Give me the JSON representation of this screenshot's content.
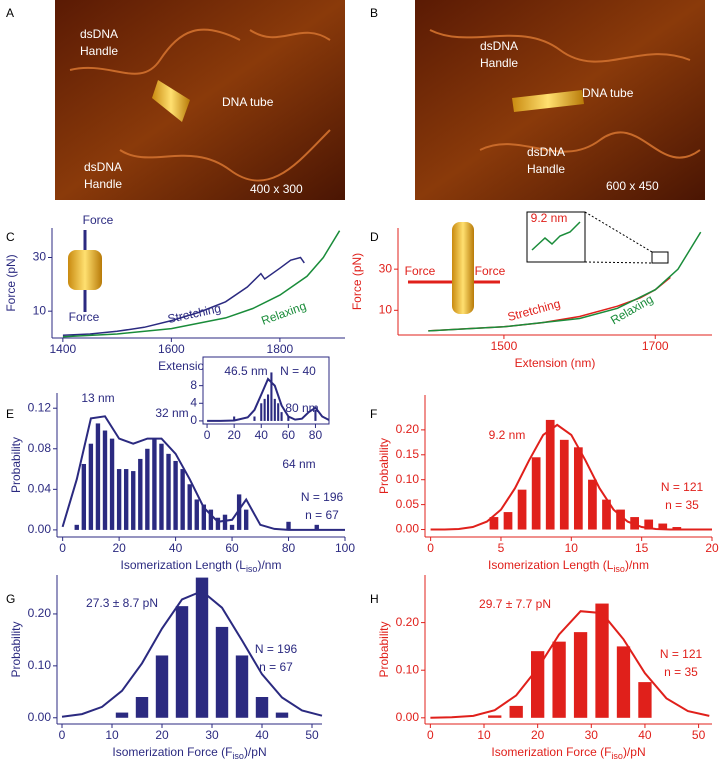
{
  "images": [
    {
      "panel": "A",
      "labels": [
        [
          "dsDNA",
          "Handle"
        ],
        [
          "DNA tube"
        ],
        [
          "dsDNA",
          "Handle"
        ],
        [
          "400  x 300"
        ]
      ]
    },
    {
      "panel": "B",
      "labels": [
        [
          "dsDNA",
          "Handle"
        ],
        [
          "DNA tube"
        ],
        [
          "dsDNA",
          "Handle"
        ],
        [
          "600  x 450"
        ]
      ]
    }
  ],
  "chart_data": [
    {
      "type": "line",
      "panel": "C",
      "color": "#2b2a80",
      "x_label": [
        "Extension (nm)"
      ],
      "y_label": "Force (pN)",
      "xlim": [
        1380,
        1920
      ],
      "xticks": [
        1400,
        1600,
        1800
      ],
      "ylim": [
        0,
        41
      ],
      "yticks": [
        10,
        30
      ],
      "annotations": [
        "Force",
        "Force"
      ],
      "series": [
        {
          "name": "Stretching",
          "color": "#2b2a80",
          "x": [
            1400,
            1450,
            1500,
            1550,
            1600,
            1650,
            1700,
            1740,
            1765,
            1772,
            1800,
            1820,
            1838,
            1845
          ],
          "values": [
            1,
            1.5,
            2.5,
            4,
            6.5,
            9.5,
            13.5,
            19,
            24,
            22,
            26,
            29,
            30,
            28
          ]
        },
        {
          "name": "Relaxing",
          "color": "#1a8c3a",
          "x": [
            1400,
            1500,
            1600,
            1700,
            1750,
            1800,
            1850,
            1880,
            1910
          ],
          "values": [
            0.5,
            1.5,
            3.5,
            7.5,
            11,
            16,
            23,
            30,
            40
          ]
        }
      ]
    },
    {
      "type": "line",
      "panel": "D",
      "color": "#e0201b",
      "x_label": [
        "Extension (nm)"
      ],
      "y_label": "Force (pN)",
      "xlim": [
        1360,
        1775
      ],
      "xticks": [
        1500,
        1700
      ],
      "ylim": [
        -2,
        50
      ],
      "yticks": [
        10,
        30
      ],
      "annotations": [
        "Force",
        "Force",
        "9.2 nm"
      ],
      "series": [
        {
          "name": "Stretching",
          "color": "#e0201b",
          "x": [
            1400,
            1450,
            1500,
            1550,
            1600,
            1650,
            1680,
            1700,
            1720
          ],
          "values": [
            0,
            1,
            2,
            4,
            7,
            12,
            16,
            20,
            26
          ]
        },
        {
          "name": "Relaxing",
          "color": "#1a8c3a",
          "x": [
            1400,
            1500,
            1600,
            1650,
            1700,
            1730,
            1760
          ],
          "values": [
            0,
            2,
            6,
            11,
            20,
            30,
            48
          ]
        }
      ]
    },
    {
      "type": "bar",
      "panel": "E",
      "color": "#2b2a80",
      "x_label": [
        "Isomerization Length (L",
        "iso",
        ")/nm"
      ],
      "y_label": "Probability",
      "xlim": [
        -2,
        100
      ],
      "xticks": [
        0,
        20,
        40,
        60,
        80,
        100
      ],
      "ylim": [
        -0.007,
        0.135
      ],
      "yticks": [
        {
          "value": 0,
          "label": "0.00"
        },
        {
          "value": 0.04,
          "label": "0.04"
        },
        {
          "value": 0.08,
          "label": "0.08"
        },
        {
          "value": 0.12,
          "label": "0.12"
        }
      ],
      "annotations": [
        "13 nm",
        "32 nm",
        "64 nm",
        "N = 196",
        "n = 67"
      ],
      "x": [
        5,
        7.5,
        10,
        12.5,
        15,
        17.5,
        20,
        22.5,
        25,
        27.5,
        30,
        32.5,
        35,
        37.5,
        40,
        42.5,
        45,
        47.5,
        50,
        52.5,
        55,
        57.5,
        60,
        62.5,
        65,
        80,
        90
      ],
      "values": [
        0.005,
        0.065,
        0.085,
        0.105,
        0.098,
        0.09,
        0.06,
        0.06,
        0.058,
        0.07,
        0.08,
        0.09,
        0.085,
        0.075,
        0.068,
        0.06,
        0.045,
        0.03,
        0.025,
        0.02,
        0.012,
        0.015,
        0.005,
        0.035,
        0.02,
        0.008,
        0.005
      ],
      "fit": {
        "x": [
          0,
          5,
          10,
          15,
          20,
          25,
          30,
          35,
          40,
          45,
          50,
          55,
          60,
          65,
          70,
          75,
          80,
          85,
          90,
          95,
          100
        ],
        "values": [
          0.003,
          0.05,
          0.11,
          0.112,
          0.09,
          0.085,
          0.09,
          0.09,
          0.075,
          0.05,
          0.022,
          0.008,
          0.01,
          0.03,
          0.005,
          0.001,
          0,
          0,
          0,
          0,
          0
        ]
      }
    },
    {
      "type": "bar",
      "color": "#2b2a80",
      "frame": true,
      "xlim": [
        -3,
        90
      ],
      "xticks": [
        0,
        20,
        40,
        60,
        80
      ],
      "ylim": [
        -0.7,
        14.5
      ],
      "yticks": [
        0,
        4,
        8
      ],
      "annotations": [
        "46.5 nm",
        "N = 40",
        "80 nm"
      ],
      "x": [
        20,
        35,
        40,
        42.5,
        45,
        47.5,
        50,
        52.5,
        55,
        60,
        80
      ],
      "values": [
        1,
        1,
        4,
        5,
        6,
        11,
        5,
        4,
        2,
        1,
        2.5
      ],
      "fit": {
        "x": [
          0,
          10,
          20,
          30,
          35,
          40,
          45,
          50,
          55,
          60,
          65,
          70,
          75,
          80,
          85,
          90
        ],
        "values": [
          0,
          0,
          0.1,
          0.8,
          2.5,
          6,
          9.5,
          8,
          3.5,
          1,
          0.3,
          0.5,
          2,
          3,
          1,
          0.2
        ]
      }
    },
    {
      "type": "bar",
      "panel": "F",
      "color": "#e0201b",
      "x_label": [
        "Isomerization Length (L",
        "iso",
        ")/nm"
      ],
      "y_label": "Probability",
      "xlim": [
        -0.4,
        20
      ],
      "xticks": [
        0,
        5,
        10,
        15,
        20
      ],
      "ylim": [
        -0.015,
        0.27
      ],
      "yticks": [
        {
          "value": 0,
          "label": "0.00"
        },
        {
          "value": 0.05,
          "label": "0.05"
        },
        {
          "value": 0.1,
          "label": "0.10"
        },
        {
          "value": 0.15,
          "label": "0.15"
        },
        {
          "value": 0.2,
          "label": "0.20"
        }
      ],
      "annotations": [
        "9.2 nm",
        "N = 121",
        "n = 35"
      ],
      "x": [
        4.5,
        5.5,
        6.5,
        7.5,
        8.5,
        9.5,
        10.5,
        11.5,
        12.5,
        13.5,
        14.5,
        15.5,
        16.5,
        17.5
      ],
      "values": [
        0.025,
        0.035,
        0.08,
        0.145,
        0.22,
        0.18,
        0.165,
        0.1,
        0.06,
        0.04,
        0.025,
        0.02,
        0.012,
        0.005
      ],
      "fit": {
        "x": [
          0,
          1,
          2,
          3,
          4,
          5,
          6,
          7,
          8,
          9,
          10,
          11,
          12,
          13,
          14,
          15,
          16,
          17,
          18,
          19,
          20
        ],
        "values": [
          0,
          0,
          0.001,
          0.005,
          0.016,
          0.04,
          0.083,
          0.139,
          0.19,
          0.21,
          0.19,
          0.139,
          0.083,
          0.04,
          0.016,
          0.005,
          0.001,
          0,
          0,
          0,
          0
        ]
      }
    },
    {
      "type": "bar",
      "panel": "G",
      "color": "#2b2a80",
      "x_label": [
        "Isomerization Force (F",
        "iso",
        ")/pN"
      ],
      "y_label": "Probability",
      "xlim": [
        -1,
        52
      ],
      "xticks": [
        0,
        10,
        20,
        30,
        40,
        50
      ],
      "ylim": [
        -0.012,
        0.275
      ],
      "yticks": [
        {
          "value": 0,
          "label": "0.00"
        },
        {
          "value": 0.1,
          "label": "0.10"
        },
        {
          "value": 0.2,
          "label": "0.20"
        }
      ],
      "annotations": [
        "27.3 ± 8.7 pN",
        "N = 196",
        "n = 67"
      ],
      "x": [
        12,
        16,
        20,
        24,
        28,
        32,
        36,
        40,
        44
      ],
      "values": [
        0.01,
        0.04,
        0.12,
        0.215,
        0.27,
        0.175,
        0.12,
        0.04,
        0.01
      ],
      "fit": {
        "x": [
          0,
          4,
          8,
          12,
          16,
          20,
          24,
          28,
          32,
          36,
          40,
          44,
          48,
          52
        ],
        "values": [
          0.002,
          0.007,
          0.021,
          0.052,
          0.105,
          0.172,
          0.228,
          0.244,
          0.212,
          0.149,
          0.084,
          0.039,
          0.014,
          0.004
        ]
      }
    },
    {
      "type": "bar",
      "panel": "H",
      "color": "#e0201b",
      "x_label": [
        "Isomerization Force (F",
        "iso",
        ")/pN"
      ],
      "y_label": "Probability",
      "xlim": [
        -1,
        52.5
      ],
      "xticks": [
        0,
        10,
        20,
        30,
        40,
        50
      ],
      "ylim": [
        -0.013,
        0.3
      ],
      "yticks": [
        {
          "value": 0,
          "label": "0.00"
        },
        {
          "value": 0.1,
          "label": "0.10"
        },
        {
          "value": 0.2,
          "label": "0.20"
        }
      ],
      "annotations": [
        "29.7 ± 7.7 pN",
        "N = 121",
        "n = 35"
      ],
      "x": [
        12,
        16,
        20,
        24,
        28,
        32,
        36,
        40
      ],
      "values": [
        0.005,
        0.025,
        0.14,
        0.16,
        0.18,
        0.24,
        0.15,
        0.075
      ],
      "fit": {
        "x": [
          0,
          4,
          8,
          12,
          16,
          20,
          24,
          28,
          32,
          36,
          40,
          44,
          48,
          52
        ],
        "values": [
          0,
          0.001,
          0.004,
          0.016,
          0.047,
          0.104,
          0.175,
          0.224,
          0.22,
          0.165,
          0.094,
          0.041,
          0.014,
          0.004
        ]
      }
    }
  ]
}
